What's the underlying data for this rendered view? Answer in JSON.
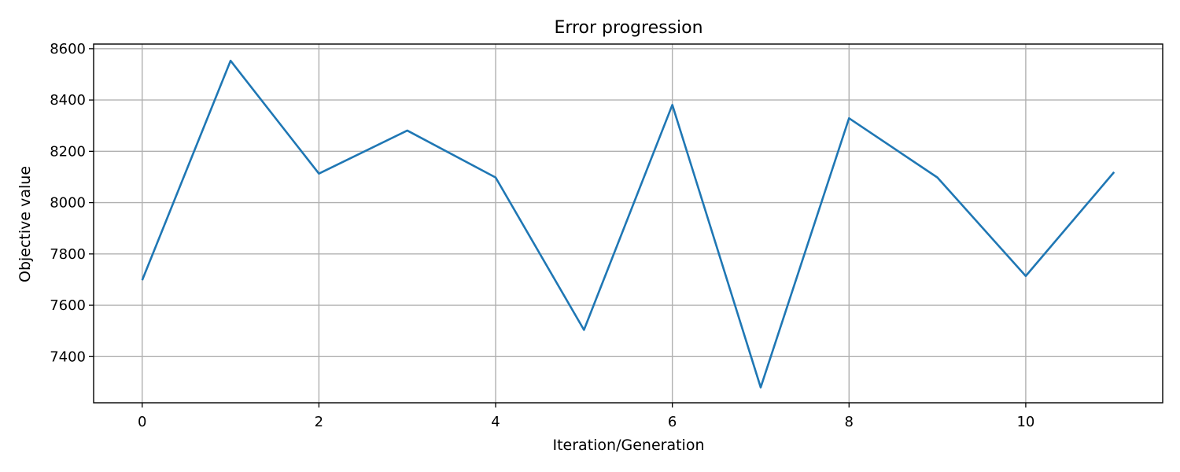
{
  "chart_data": {
    "type": "line",
    "title": "Error progression",
    "xlabel": "Iteration/Generation",
    "ylabel": "Objective value",
    "xlim": [
      -0.55,
      11.55
    ],
    "ylim": [
      7220,
      8618
    ],
    "xticks": [
      0,
      2,
      4,
      6,
      8,
      10
    ],
    "yticks": [
      7400,
      7600,
      7800,
      8000,
      8200,
      8400,
      8600
    ],
    "grid": true,
    "series": [
      {
        "x": [
          0,
          1,
          2,
          3,
          4,
          5,
          6,
          7,
          8,
          9,
          10,
          11
        ],
        "values": [
          7698,
          8553,
          8113,
          8281,
          8098,
          7504,
          8381,
          7280,
          8329,
          8098,
          7714,
          8119
        ],
        "color": "#1f77b4"
      }
    ]
  }
}
